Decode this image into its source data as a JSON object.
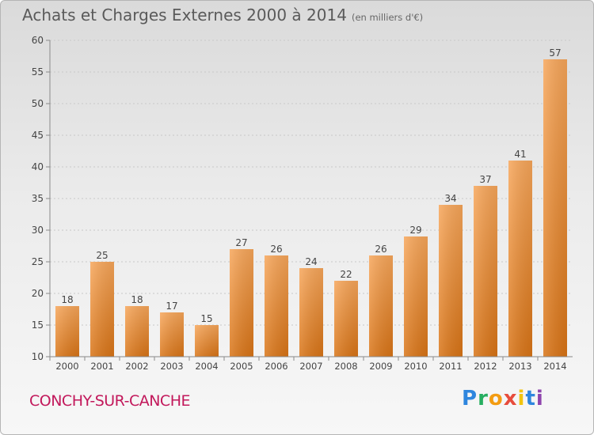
{
  "title": "Achats et Charges Externes 2000 à 2014",
  "subtitle": "(en milliers d'€)",
  "commune": "CONCHY-SUR-CANCHE",
  "logo": {
    "text": "Proxiti",
    "letter_colors": [
      "#2e86de",
      "#27ae60",
      "#f39c12",
      "#e74c3c",
      "#f1c40f",
      "#2e86de",
      "#8e44ad"
    ]
  },
  "colors": {
    "bar_light": "#f7a65a",
    "bar_dark": "#d97416",
    "axis": "#8a8a8a",
    "grid": "#c8c8c8",
    "label": "#444444"
  },
  "chart_data": {
    "type": "bar",
    "categories": [
      "2000",
      "2001",
      "2002",
      "2003",
      "2004",
      "2005",
      "2006",
      "2007",
      "2008",
      "2009",
      "2010",
      "2011",
      "2012",
      "2013",
      "2014"
    ],
    "values": [
      18,
      25,
      18,
      17,
      15,
      27,
      26,
      24,
      22,
      26,
      29,
      34,
      37,
      41,
      57
    ],
    "ylim": [
      10,
      60
    ],
    "yticks": [
      10,
      15,
      20,
      25,
      30,
      35,
      40,
      45,
      50,
      55,
      60
    ],
    "title": "Achats et Charges Externes 2000 à 2014",
    "xlabel": "",
    "ylabel": ""
  }
}
